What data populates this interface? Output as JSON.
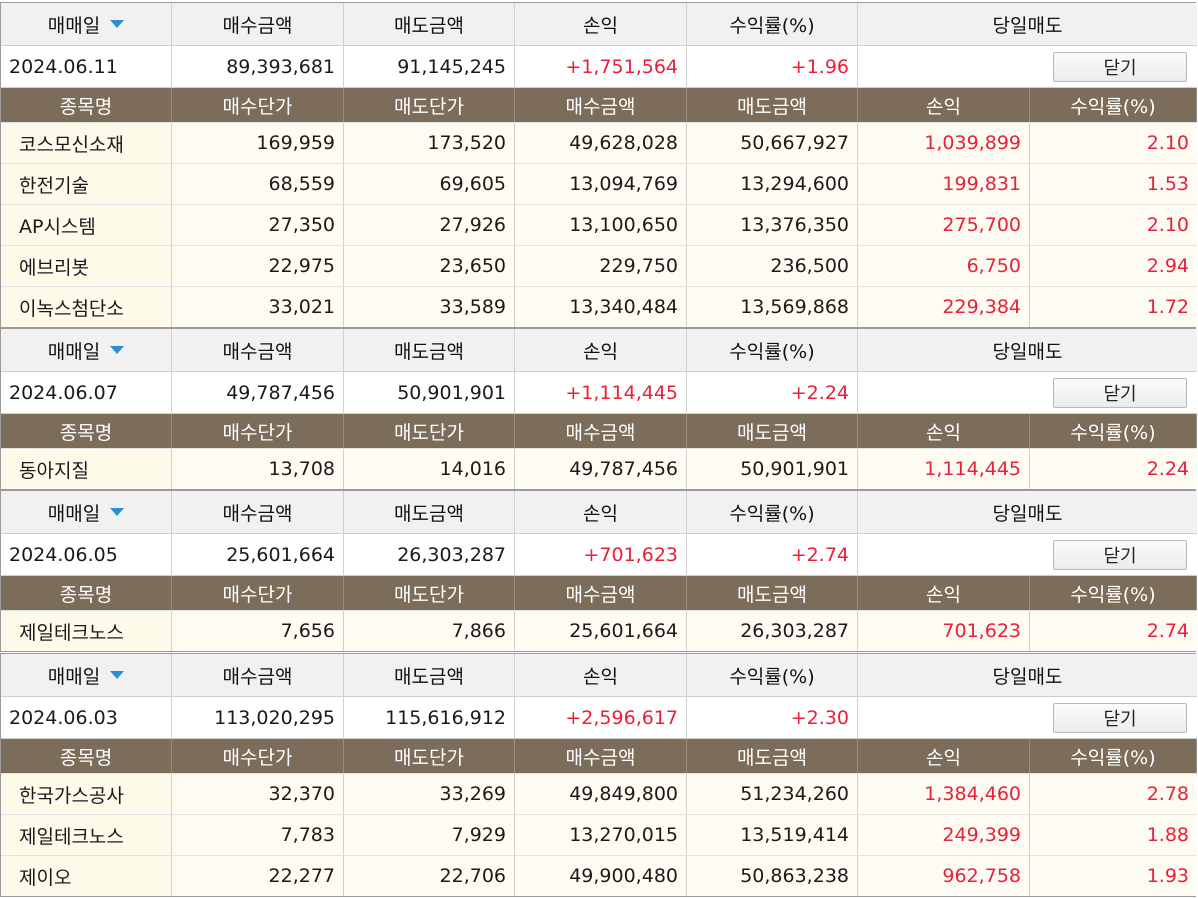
{
  "labels": {
    "trade_date": "매매일",
    "buy_amount": "매수금액",
    "sell_amount": "매도금액",
    "profit": "손익",
    "return_rate": "수익률(%)",
    "day_sell": "당일매도",
    "close": "닫기",
    "stock_name": "종목명",
    "buy_price": "매수단가",
    "sell_price": "매도단가"
  },
  "colors": {
    "header_brown": "#7b6d59",
    "positive": "#e8203a",
    "caret_blue": "#2a8fd6",
    "row_bg": "#fdfaea"
  },
  "groups": [
    {
      "date": "2024.06.11",
      "buy": "89,393,681",
      "sell": "91,145,245",
      "profit": "+1,751,564",
      "rate": "+1.96",
      "items": [
        {
          "name": "코스모신소재",
          "buy_price": "169,959",
          "sell_price": "173,520",
          "buy": "49,628,028",
          "sell": "50,667,927",
          "profit": "1,039,899",
          "rate": "2.10"
        },
        {
          "name": "한전기술",
          "buy_price": "68,559",
          "sell_price": "69,605",
          "buy": "13,094,769",
          "sell": "13,294,600",
          "profit": "199,831",
          "rate": "1.53"
        },
        {
          "name": "AP시스템",
          "buy_price": "27,350",
          "sell_price": "27,926",
          "buy": "13,100,650",
          "sell": "13,376,350",
          "profit": "275,700",
          "rate": "2.10"
        },
        {
          "name": "에브리봇",
          "buy_price": "22,975",
          "sell_price": "23,650",
          "buy": "229,750",
          "sell": "236,500",
          "profit": "6,750",
          "rate": "2.94"
        },
        {
          "name": "이녹스첨단소",
          "buy_price": "33,021",
          "sell_price": "33,589",
          "buy": "13,340,484",
          "sell": "13,569,868",
          "profit": "229,384",
          "rate": "1.72"
        }
      ]
    },
    {
      "date": "2024.06.07",
      "buy": "49,787,456",
      "sell": "50,901,901",
      "profit": "+1,114,445",
      "rate": "+2.24",
      "items": [
        {
          "name": "동아지질",
          "buy_price": "13,708",
          "sell_price": "14,016",
          "buy": "49,787,456",
          "sell": "50,901,901",
          "profit": "1,114,445",
          "rate": "2.24"
        }
      ]
    },
    {
      "date": "2024.06.05",
      "buy": "25,601,664",
      "sell": "26,303,287",
      "profit": "+701,623",
      "rate": "+2.74",
      "items": [
        {
          "name": "제일테크노스",
          "buy_price": "7,656",
          "sell_price": "7,866",
          "buy": "25,601,664",
          "sell": "26,303,287",
          "profit": "701,623",
          "rate": "2.74"
        }
      ]
    },
    {
      "date": "2024.06.03",
      "buy": "113,020,295",
      "sell": "115,616,912",
      "profit": "+2,596,617",
      "rate": "+2.30",
      "items": [
        {
          "name": "한국가스공사",
          "buy_price": "32,370",
          "sell_price": "33,269",
          "buy": "49,849,800",
          "sell": "51,234,260",
          "profit": "1,384,460",
          "rate": "2.78"
        },
        {
          "name": "제일테크노스",
          "buy_price": "7,783",
          "sell_price": "7,929",
          "buy": "13,270,015",
          "sell": "13,519,414",
          "profit": "249,399",
          "rate": "1.88"
        },
        {
          "name": "제이오",
          "buy_price": "22,277",
          "sell_price": "22,706",
          "buy": "49,900,480",
          "sell": "50,863,238",
          "profit": "962,758",
          "rate": "1.93"
        }
      ]
    }
  ]
}
